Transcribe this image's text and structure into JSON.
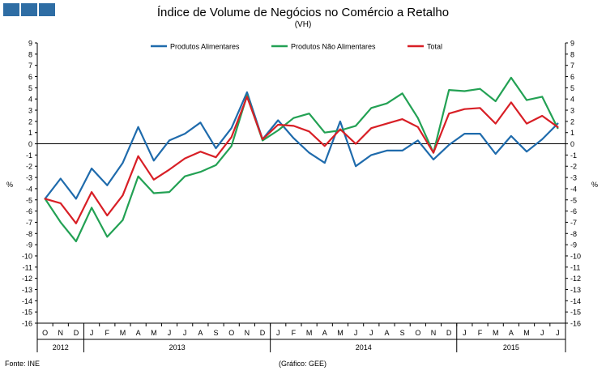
{
  "header": {
    "brand_color": "#2e6da4"
  },
  "chart_data": {
    "type": "line",
    "title": "Índice de Volume de Negócios no Comércio a Retalho",
    "subtitle": "(VH)",
    "ylabel_left": "%",
    "ylabel_right": "%",
    "ylim": [
      -16,
      9
    ],
    "yticks": [
      9,
      8,
      7,
      6,
      5,
      4,
      3,
      2,
      1,
      0,
      -1,
      -2,
      -3,
      -4,
      -5,
      -6,
      -7,
      -8,
      -9,
      -10,
      -11,
      -12,
      -13,
      -14,
      -15,
      -16
    ],
    "months": [
      "O",
      "N",
      "D",
      "J",
      "F",
      "M",
      "A",
      "M",
      "J",
      "J",
      "A",
      "S",
      "O",
      "N",
      "D",
      "J",
      "F",
      "M",
      "A",
      "M",
      "J",
      "J",
      "A",
      "S",
      "O",
      "N",
      "D",
      "J",
      "F",
      "M",
      "A",
      "M",
      "J",
      "J"
    ],
    "years": [
      {
        "label": "2012",
        "start": 0,
        "end": 2
      },
      {
        "label": "2013",
        "start": 3,
        "end": 14
      },
      {
        "label": "2014",
        "start": 15,
        "end": 26
      },
      {
        "label": "2015",
        "start": 27,
        "end": 33
      }
    ],
    "series": [
      {
        "name": "Produtos Alimentares",
        "color": "#1f6bac",
        "values": [
          -4.9,
          -3.1,
          -4.9,
          -2.2,
          -3.7,
          -1.7,
          1.5,
          -1.5,
          0.3,
          0.9,
          1.9,
          -0.4,
          1.4,
          4.6,
          0.4,
          2.1,
          0.5,
          -0.8,
          -1.7,
          2.0,
          -2.0,
          -1.0,
          -0.6,
          -0.6,
          0.3,
          -1.4,
          -0.1,
          0.9,
          0.9,
          -0.9,
          0.7,
          -0.7,
          0.4,
          1.8
        ]
      },
      {
        "name": "Produtos Não Alimentares",
        "color": "#23a154",
        "values": [
          -4.9,
          -7.0,
          -8.7,
          -5.7,
          -8.3,
          -6.8,
          -2.9,
          -4.4,
          -4.3,
          -2.9,
          -2.5,
          -1.9,
          -0.2,
          4.3,
          0.3,
          1.2,
          2.3,
          2.7,
          1.0,
          1.2,
          1.6,
          3.2,
          3.6,
          4.5,
          2.3,
          -0.8,
          4.8,
          4.7,
          4.9,
          3.8,
          5.9,
          3.9,
          4.2,
          1.4
        ]
      },
      {
        "name": "Total",
        "color": "#d81f26",
        "values": [
          -4.9,
          -5.3,
          -7.1,
          -4.3,
          -6.4,
          -4.6,
          -1.1,
          -3.2,
          -2.3,
          -1.3,
          -0.7,
          -1.2,
          0.6,
          4.2,
          0.4,
          1.7,
          1.6,
          1.1,
          -0.2,
          1.3,
          0.0,
          1.4,
          1.8,
          2.2,
          1.5,
          -0.8,
          2.7,
          3.1,
          3.2,
          1.8,
          3.7,
          1.8,
          2.5,
          1.5
        ]
      }
    ]
  },
  "footer": {
    "source": "Fonte: INE",
    "credit": "(Gráfico:  GEE)"
  }
}
